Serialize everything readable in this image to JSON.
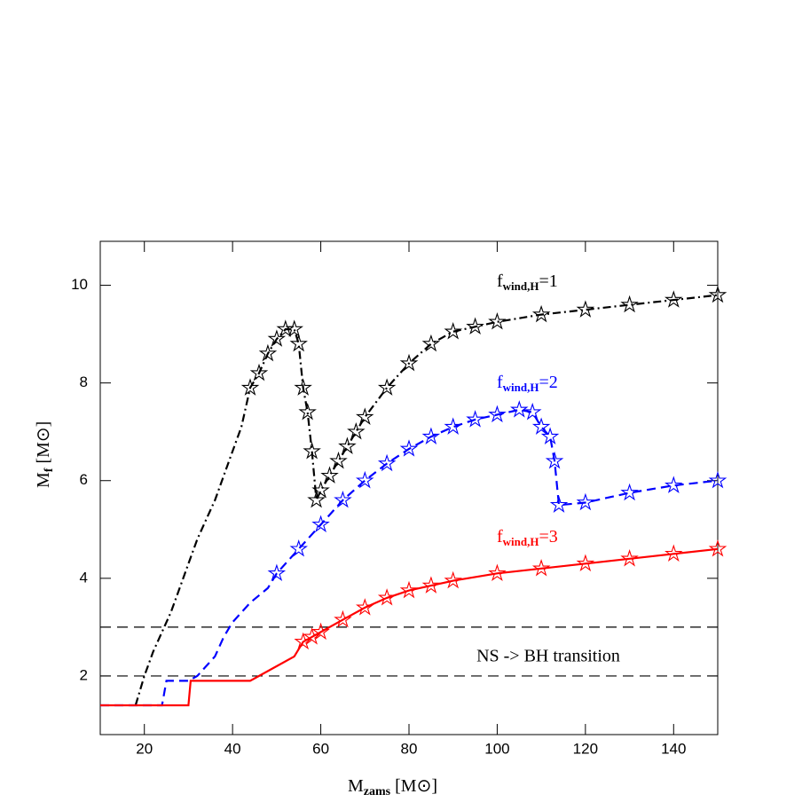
{
  "chart_data": {
    "type": "line",
    "xlabel": {
      "main": "M",
      "sub": "zams",
      "rest": " [M⊙]"
    },
    "ylabel": {
      "main": "M",
      "sub": "f",
      "rest": " [M⊙]"
    },
    "xlim": [
      10,
      150
    ],
    "xticks": [
      20,
      40,
      60,
      80,
      100,
      120,
      140
    ],
    "ylim": [
      0.8,
      10.9
    ],
    "yticks": [
      2,
      4,
      6,
      8,
      10
    ],
    "series": [
      {
        "name": {
          "main": "f",
          "sub": "wind,H",
          "rest": "=1"
        },
        "color": "#000000",
        "dash": "9,4,2,4",
        "marker_from": 44,
        "x": [
          18,
          20,
          22,
          24,
          26,
          28,
          30,
          32,
          34,
          36,
          38,
          40,
          42,
          44,
          46,
          48,
          50,
          52,
          54,
          55,
          56,
          57,
          58,
          59,
          60,
          62,
          64,
          66,
          68,
          70,
          75,
          80,
          85,
          90,
          95,
          100,
          110,
          120,
          130,
          140,
          150
        ],
        "values": [
          1.4,
          2.0,
          2.5,
          2.9,
          3.3,
          3.8,
          4.3,
          4.8,
          5.2,
          5.6,
          6.1,
          6.6,
          7.1,
          7.9,
          8.2,
          8.6,
          8.9,
          9.1,
          9.1,
          8.8,
          7.9,
          7.4,
          6.6,
          5.6,
          5.8,
          6.1,
          6.4,
          6.7,
          7.0,
          7.3,
          7.9,
          8.4,
          8.8,
          9.05,
          9.15,
          9.25,
          9.4,
          9.5,
          9.6,
          9.7,
          9.8
        ]
      },
      {
        "name": {
          "main": "f",
          "sub": "wind,H",
          "rest": "=2"
        },
        "color": "#0000ff",
        "dash": "10,6",
        "marker_from": 50,
        "x": [
          10,
          24,
          25,
          30,
          32,
          36,
          38,
          40,
          44,
          48,
          50,
          55,
          60,
          65,
          70,
          75,
          80,
          85,
          90,
          95,
          100,
          105,
          108,
          110,
          112,
          113,
          114,
          120,
          130,
          140,
          150
        ],
        "values": [
          1.4,
          1.4,
          1.9,
          1.9,
          2.0,
          2.4,
          2.8,
          3.1,
          3.5,
          3.8,
          4.1,
          4.6,
          5.1,
          5.6,
          6.0,
          6.35,
          6.65,
          6.9,
          7.1,
          7.25,
          7.35,
          7.45,
          7.4,
          7.1,
          6.9,
          6.4,
          5.5,
          5.55,
          5.75,
          5.9,
          6.0
        ]
      },
      {
        "name": {
          "main": "f",
          "sub": "wind,H",
          "rest": "=3"
        },
        "color": "#ff0000",
        "dash": "none",
        "marker_from": 56,
        "x": [
          10,
          30,
          30.5,
          44,
          46,
          50,
          54,
          56,
          58,
          60,
          65,
          70,
          75,
          80,
          85,
          90,
          100,
          110,
          120,
          130,
          140,
          150
        ],
        "values": [
          1.4,
          1.4,
          1.9,
          1.9,
          2.0,
          2.2,
          2.4,
          2.7,
          2.8,
          2.9,
          3.15,
          3.4,
          3.6,
          3.75,
          3.85,
          3.95,
          4.1,
          4.2,
          4.3,
          4.4,
          4.5,
          4.6
        ]
      }
    ],
    "hlines": [
      2,
      3
    ],
    "annotation": "NS -> BH transition"
  }
}
